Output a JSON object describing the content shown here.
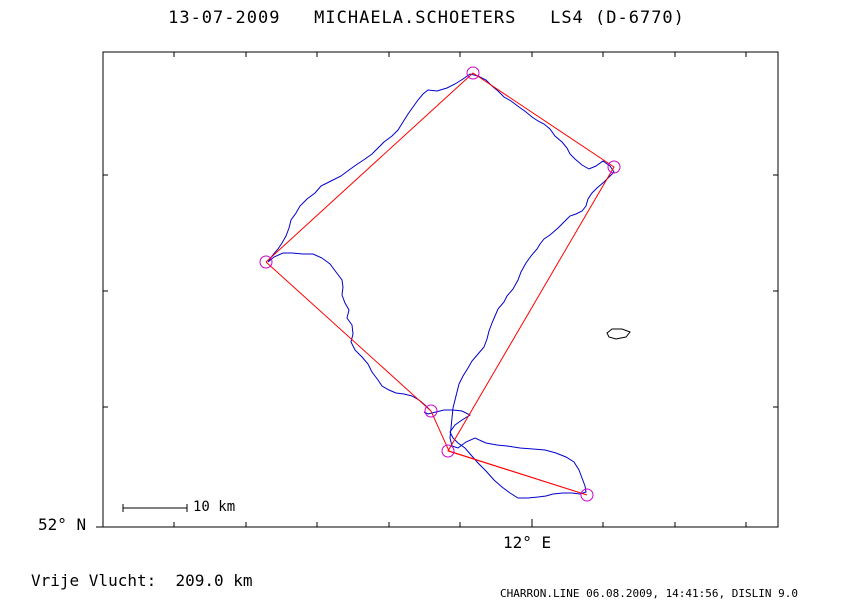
{
  "title": "13-07-2009   MICHAELA.SCHOETERS   LS4 (D-6770)",
  "axes": {
    "lat_label": "52° N",
    "lon_label": "12° E"
  },
  "scale_bar": {
    "label": "10 km"
  },
  "distance_line": "Vrije Vlucht:  209.0 km",
  "footer": "CHARRON.LINE 06.08.2009, 14:41:56, DISLIN 9.0",
  "colors": {
    "track": "#0000cc",
    "task": "#ff0000",
    "turnpoint": "#cc00cc",
    "frame": "#000000"
  }
}
